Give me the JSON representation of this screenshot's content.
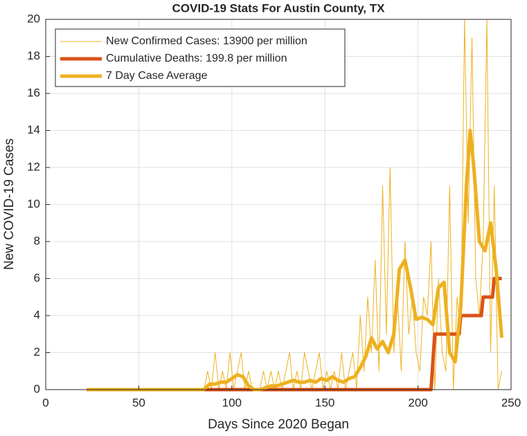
{
  "chart_data": {
    "type": "line",
    "title": "COVID-19 Stats For Austin County, TX",
    "x_label": "Days Since 2020 Began",
    "y_label": "New COVID-19 Cases",
    "xlim": [
      0,
      250
    ],
    "xticks": [
      0,
      50,
      100,
      150,
      200,
      250
    ],
    "ylim": [
      0,
      20
    ],
    "yticks": [
      0,
      2,
      4,
      6,
      8,
      10,
      12,
      14,
      16,
      18,
      20
    ],
    "grid": true,
    "legend": "top-left",
    "series": [
      {
        "name": "New Confirmed Cases: 13900 per million",
        "color": "#EDB120",
        "width": 1,
        "x": [
          22,
          83,
          85,
          87,
          89,
          91,
          93,
          95,
          97,
          99,
          101,
          103,
          105,
          107,
          109,
          111,
          113,
          115,
          117,
          119,
          121,
          123,
          125,
          127,
          129,
          131,
          133,
          135,
          137,
          139,
          141,
          143,
          145,
          147,
          149,
          151,
          153,
          155,
          157,
          159,
          161,
          163,
          165,
          167,
          169,
          171,
          173,
          175,
          177,
          179,
          181,
          183,
          185,
          187,
          189,
          191,
          193,
          195,
          197,
          199,
          201,
          203,
          205,
          207,
          209,
          211,
          213,
          215,
          217,
          219,
          221,
          223,
          225,
          227,
          229,
          231,
          233,
          235,
          237,
          239,
          241,
          243,
          245
        ],
        "values": [
          0,
          0,
          0,
          1,
          0,
          2,
          0,
          1,
          0,
          2,
          0,
          1,
          2,
          0,
          1,
          0,
          0,
          0,
          1,
          0,
          1,
          0,
          1,
          0,
          1,
          2,
          0,
          1,
          0,
          2,
          1,
          0,
          1,
          2,
          0,
          1,
          0,
          1,
          0,
          2,
          0,
          1,
          2,
          0,
          4,
          1,
          5,
          2,
          7,
          1,
          11,
          3,
          12,
          2,
          5,
          1,
          8,
          3,
          5,
          2,
          1,
          5,
          4,
          8,
          0,
          6,
          2,
          1,
          11,
          0,
          5,
          3,
          20,
          9,
          19,
          6,
          4,
          8,
          20,
          2,
          11,
          0,
          1
        ]
      },
      {
        "name": "Cumulative Deaths: 199.8 per million",
        "color": "#D95319",
        "width": 5,
        "x": [
          22,
          207,
          209,
          222,
          223,
          234,
          235,
          240,
          241,
          245
        ],
        "values": [
          0,
          0,
          3,
          3,
          4,
          4,
          5,
          5,
          6,
          6
        ]
      },
      {
        "name": "7 Day Case Average",
        "color": "#EDB120",
        "width": 5,
        "x": [
          22,
          85,
          88,
          91,
          94,
          97,
          100,
          103,
          106,
          109,
          112,
          115,
          118,
          121,
          124,
          127,
          130,
          133,
          136,
          139,
          142,
          145,
          148,
          151,
          154,
          157,
          160,
          163,
          166,
          169,
          172,
          175,
          178,
          181,
          184,
          187,
          190,
          193,
          196,
          199,
          202,
          205,
          208,
          211,
          214,
          217,
          220,
          223,
          226,
          228,
          230,
          233,
          236,
          239,
          242,
          245
        ],
        "values": [
          0,
          0,
          0.3,
          0.3,
          0.4,
          0.4,
          0.6,
          0.8,
          0.7,
          0.2,
          0,
          0,
          0.1,
          0.2,
          0.2,
          0.3,
          0.4,
          0.5,
          0.4,
          0.4,
          0.5,
          0.4,
          0.6,
          0.5,
          0.7,
          0.5,
          0.4,
          0.6,
          0.7,
          1.2,
          1.8,
          2.8,
          2.2,
          2.6,
          2.0,
          3.0,
          6.5,
          7.0,
          5.5,
          3.8,
          3.9,
          3.8,
          3.5,
          5.5,
          5.8,
          2.0,
          1.5,
          4.5,
          11,
          14,
          12,
          8,
          7.5,
          9,
          6.5,
          2.8
        ]
      }
    ]
  }
}
